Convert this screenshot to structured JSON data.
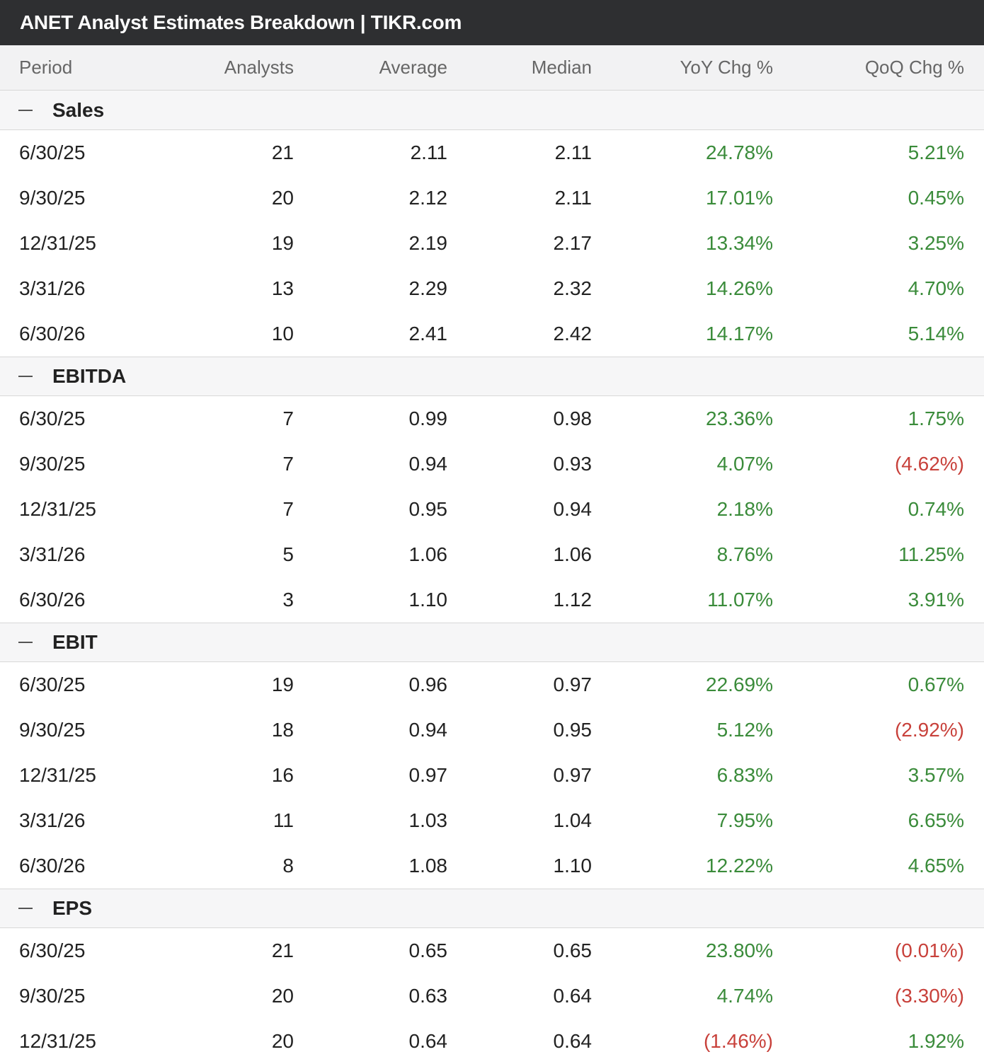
{
  "title": "ANET Analyst Estimates Breakdown | TIKR.com",
  "columns": [
    "Period",
    "Analysts",
    "Average",
    "Median",
    "YoY Chg %",
    "QoQ Chg %"
  ],
  "sections": [
    {
      "name": "Sales",
      "rows": [
        {
          "period": "6/30/25",
          "analysts": "21",
          "average": "2.11",
          "median": "2.11",
          "yoy": "24.78%",
          "qoq": "5.21%"
        },
        {
          "period": "9/30/25",
          "analysts": "20",
          "average": "2.12",
          "median": "2.11",
          "yoy": "17.01%",
          "qoq": "0.45%"
        },
        {
          "period": "12/31/25",
          "analysts": "19",
          "average": "2.19",
          "median": "2.17",
          "yoy": "13.34%",
          "qoq": "3.25%"
        },
        {
          "period": "3/31/26",
          "analysts": "13",
          "average": "2.29",
          "median": "2.32",
          "yoy": "14.26%",
          "qoq": "4.70%"
        },
        {
          "period": "6/30/26",
          "analysts": "10",
          "average": "2.41",
          "median": "2.42",
          "yoy": "14.17%",
          "qoq": "5.14%"
        }
      ]
    },
    {
      "name": "EBITDA",
      "rows": [
        {
          "period": "6/30/25",
          "analysts": "7",
          "average": "0.99",
          "median": "0.98",
          "yoy": "23.36%",
          "qoq": "1.75%"
        },
        {
          "period": "9/30/25",
          "analysts": "7",
          "average": "0.94",
          "median": "0.93",
          "yoy": "4.07%",
          "qoq": "(4.62%)"
        },
        {
          "period": "12/31/25",
          "analysts": "7",
          "average": "0.95",
          "median": "0.94",
          "yoy": "2.18%",
          "qoq": "0.74%"
        },
        {
          "period": "3/31/26",
          "analysts": "5",
          "average": "1.06",
          "median": "1.06",
          "yoy": "8.76%",
          "qoq": "11.25%"
        },
        {
          "period": "6/30/26",
          "analysts": "3",
          "average": "1.10",
          "median": "1.12",
          "yoy": "11.07%",
          "qoq": "3.91%"
        }
      ]
    },
    {
      "name": "EBIT",
      "rows": [
        {
          "period": "6/30/25",
          "analysts": "19",
          "average": "0.96",
          "median": "0.97",
          "yoy": "22.69%",
          "qoq": "0.67%"
        },
        {
          "period": "9/30/25",
          "analysts": "18",
          "average": "0.94",
          "median": "0.95",
          "yoy": "5.12%",
          "qoq": "(2.92%)"
        },
        {
          "period": "12/31/25",
          "analysts": "16",
          "average": "0.97",
          "median": "0.97",
          "yoy": "6.83%",
          "qoq": "3.57%"
        },
        {
          "period": "3/31/26",
          "analysts": "11",
          "average": "1.03",
          "median": "1.04",
          "yoy": "7.95%",
          "qoq": "6.65%"
        },
        {
          "period": "6/30/26",
          "analysts": "8",
          "average": "1.08",
          "median": "1.10",
          "yoy": "12.22%",
          "qoq": "4.65%"
        }
      ]
    },
    {
      "name": "EPS",
      "rows": [
        {
          "period": "6/30/25",
          "analysts": "21",
          "average": "0.65",
          "median": "0.65",
          "yoy": "23.80%",
          "qoq": "(0.01%)"
        },
        {
          "period": "9/30/25",
          "analysts": "20",
          "average": "0.63",
          "median": "0.64",
          "yoy": "4.74%",
          "qoq": "(3.30%)"
        },
        {
          "period": "12/31/25",
          "analysts": "20",
          "average": "0.64",
          "median": "0.64",
          "yoy": "(1.46%)",
          "qoq": "1.92%"
        }
      ]
    }
  ],
  "colors": {
    "positive": "#3a8b3a",
    "negative": "#c8413b",
    "titlebar": "#2e2f31"
  },
  "icons": {
    "section_toggle": "collapse-minus-icon"
  }
}
